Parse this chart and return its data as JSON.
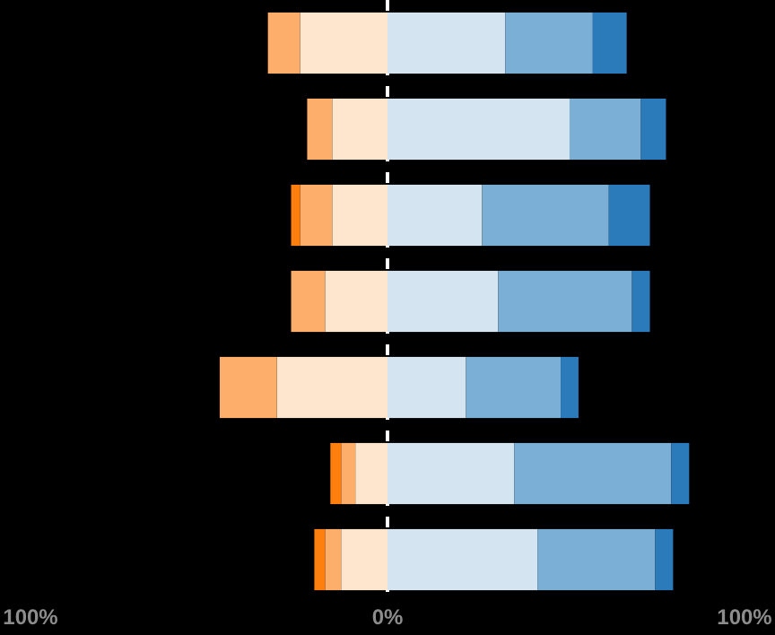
{
  "chart_data": {
    "type": "bar",
    "orientation": "horizontal",
    "stacked": true,
    "categories": [
      null,
      null,
      null,
      null,
      null,
      null,
      null
    ],
    "series": [
      {
        "color": "#fee6ce",
        "values": [
          -24.5,
          -15.5,
          -15.5,
          -17.5,
          -31,
          -9,
          -13
        ]
      },
      {
        "color": "#fdae6b",
        "values": [
          -9,
          -7,
          -9,
          -9.5,
          -16,
          -4,
          -4.5
        ]
      },
      {
        "color": "#ff7f0e",
        "values": [
          0,
          0,
          -2.5,
          0,
          0,
          -3,
          -3
        ]
      },
      {
        "color": "#d4e4f1",
        "values": [
          33,
          51,
          26.5,
          31,
          22,
          35.5,
          42
        ]
      },
      {
        "color": "#7bafd6",
        "values": [
          24.5,
          20,
          35.5,
          37.5,
          26.5,
          44,
          33
        ]
      },
      {
        "color": "#2b7bba",
        "values": [
          9.5,
          7,
          11.5,
          5,
          5,
          5,
          5
        ]
      }
    ],
    "xlim": [
      -100,
      100
    ],
    "xticks": [
      {
        "value": -100,
        "label": "100%"
      },
      {
        "value": 0,
        "label": "0%"
      },
      {
        "value": 100,
        "label": "100%"
      }
    ],
    "ref_lines": [
      {
        "axis": "x",
        "value": 0,
        "color": "#ffffff",
        "line_style": "dashed"
      }
    ]
  }
}
